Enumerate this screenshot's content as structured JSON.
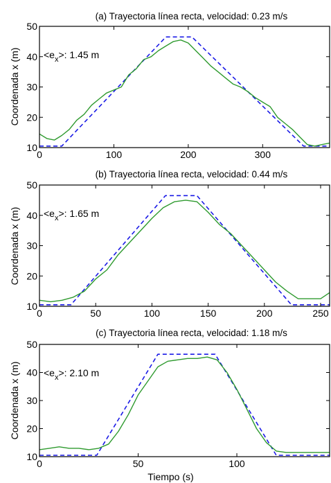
{
  "chart_data": [
    {
      "type": "line",
      "title": "(a) Trayectoria línea recta, velocidad: 0.23 m/s",
      "xlabel": "",
      "ylabel": "Coordenada x (m)",
      "xlim": [
        0,
        390
      ],
      "ylim": [
        10,
        50
      ],
      "xticks": [
        0,
        100,
        200,
        300
      ],
      "yticks": [
        10,
        20,
        30,
        40,
        50
      ],
      "grid": false,
      "annotation": {
        "prefix": "<e",
        "sub": "x",
        "suffix": ">: 1.45 m"
      },
      "series": [
        {
          "color": "#1a1ae6",
          "dash": true,
          "x": [
            0,
            30,
            170,
            205,
            355,
            390
          ],
          "y": [
            10.5,
            10.5,
            46.5,
            46.5,
            10.5,
            10.5
          ]
        },
        {
          "color": "#2e9a2e",
          "dash": false,
          "x": [
            0,
            10,
            20,
            30,
            40,
            50,
            60,
            70,
            80,
            90,
            100,
            110,
            120,
            130,
            140,
            150,
            160,
            170,
            180,
            190,
            200,
            210,
            220,
            230,
            240,
            250,
            260,
            270,
            280,
            290,
            300,
            310,
            320,
            330,
            340,
            350,
            360,
            370,
            380,
            390
          ],
          "y": [
            14.5,
            13,
            12.5,
            14,
            16,
            19,
            21,
            24,
            26,
            28,
            29,
            30,
            34,
            36,
            39,
            40,
            42,
            43.5,
            45,
            45.5,
            44.5,
            42,
            39.5,
            37,
            35,
            33,
            31,
            30,
            28.5,
            26.5,
            25,
            23.5,
            20,
            18,
            16,
            13.5,
            11,
            10.5,
            11,
            11.5
          ]
        }
      ]
    },
    {
      "type": "line",
      "title": "(b) Trayectoria línea recta, velocidad: 0.44 m/s",
      "xlabel": "",
      "ylabel": "Coordenada x (m)",
      "xlim": [
        0,
        258
      ],
      "ylim": [
        10,
        50
      ],
      "xticks": [
        0,
        50,
        100,
        150,
        200,
        250
      ],
      "yticks": [
        10,
        20,
        30,
        40,
        50
      ],
      "grid": false,
      "annotation": {
        "prefix": "<e",
        "sub": "x",
        "suffix": ">: 1.65 m"
      },
      "series": [
        {
          "color": "#1a1ae6",
          "dash": true,
          "x": [
            0,
            28,
            112,
            140,
            224,
            258
          ],
          "y": [
            10.5,
            10.5,
            46.5,
            46.5,
            10.5,
            10.5
          ]
        },
        {
          "color": "#2e9a2e",
          "dash": false,
          "x": [
            0,
            10,
            20,
            30,
            40,
            50,
            60,
            70,
            80,
            90,
            100,
            110,
            120,
            130,
            140,
            150,
            160,
            170,
            180,
            190,
            200,
            210,
            220,
            230,
            240,
            250,
            258
          ],
          "y": [
            12,
            11.5,
            12,
            13,
            15,
            19,
            22,
            27,
            31,
            35,
            39,
            42.5,
            44.5,
            45,
            44.5,
            41,
            37,
            34,
            30,
            26,
            22,
            18,
            15,
            12.5,
            12.5,
            12.5,
            14.5
          ]
        }
      ]
    },
    {
      "type": "line",
      "title": "(c) Trayectoria línea recta, velocidad: 1.18 m/s",
      "xlabel": "Tiempo (s)",
      "ylabel": "Coordenada x (m)",
      "xlim": [
        0,
        147
      ],
      "ylim": [
        10,
        50
      ],
      "xticks": [
        0,
        50,
        100
      ],
      "yticks": [
        10,
        20,
        30,
        40,
        50
      ],
      "grid": false,
      "annotation": {
        "prefix": "<e",
        "sub": "x",
        "suffix": ">: 2.10 m"
      },
      "series": [
        {
          "color": "#1a1ae6",
          "dash": true,
          "x": [
            0,
            29,
            60,
            89,
            120,
            147
          ],
          "y": [
            10.5,
            10.5,
            46.5,
            46.5,
            10.5,
            10.5
          ]
        },
        {
          "color": "#2e9a2e",
          "dash": false,
          "x": [
            0,
            5,
            10,
            15,
            20,
            25,
            30,
            35,
            40,
            45,
            50,
            55,
            60,
            65,
            70,
            75,
            80,
            85,
            90,
            95,
            100,
            105,
            110,
            115,
            120,
            125,
            130,
            135,
            140,
            147
          ],
          "y": [
            12.5,
            13,
            13.5,
            13,
            13,
            12.5,
            13,
            14.5,
            19,
            25,
            32,
            37,
            42,
            44,
            44.5,
            45,
            45,
            45.5,
            44.5,
            40,
            34,
            27,
            20,
            15,
            12,
            11.5,
            11.5,
            11.5,
            11.5,
            11.5
          ]
        }
      ]
    }
  ]
}
